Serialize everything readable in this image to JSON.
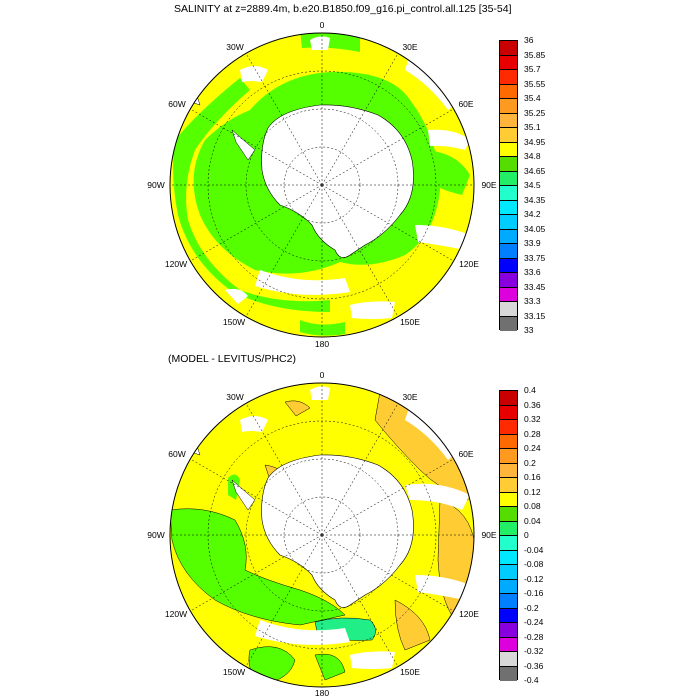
{
  "panels": [
    {
      "title": "SALINITY at z=2889.4m, b.e20.B1850.f09_g16.pi_control.all.125 [35-54]",
      "lon_labels": [
        "0",
        "30E",
        "60E",
        "90E",
        "120E",
        "150E",
        "180",
        "150W",
        "120W",
        "90W",
        "60W",
        "30W"
      ],
      "colorbar_labels": [
        "36",
        "35.85",
        "35.7",
        "35.55",
        "35.4",
        "35.25",
        "35.1",
        "34.95",
        "34.8",
        "34.65",
        "34.5",
        "34.35",
        "34.2",
        "34.05",
        "33.9",
        "33.75",
        "33.6",
        "33.45",
        "33.3",
        "33.15",
        "33"
      ],
      "colorbar_colors": [
        "#c80000",
        "#e80000",
        "#ff2a00",
        "#ff6a00",
        "#ff9a20",
        "#ffb43c",
        "#ffcc33",
        "#ffff00",
        "#55dd00",
        "#22ee66",
        "#22ffcc",
        "#00e8ff",
        "#00ccff",
        "#00aaff",
        "#0080ff",
        "#0000ff",
        "#8800dd",
        "#dd00dd",
        "#d8d8d8",
        "#707070"
      ]
    },
    {
      "title": "(MODEL - LEVITUS/PHC2)",
      "lon_labels": [
        "0",
        "30E",
        "60E",
        "90E",
        "120E",
        "150E",
        "180",
        "150W",
        "120W",
        "90W",
        "60W",
        "30W"
      ],
      "colorbar_labels": [
        "0.4",
        "0.36",
        "0.32",
        "0.28",
        "0.24",
        "0.2",
        "0.16",
        "0.12",
        "0.08",
        "0.04",
        "0",
        "-0.04",
        "-0.08",
        "-0.12",
        "-0.16",
        "-0.2",
        "-0.24",
        "-0.28",
        "-0.32",
        "-0.36",
        "-0.4"
      ],
      "colorbar_colors": [
        "#c80000",
        "#e80000",
        "#ff2a00",
        "#ff6a00",
        "#ff9a20",
        "#ffb43c",
        "#ffcc33",
        "#ffff00",
        "#55dd00",
        "#22ee66",
        "#22ffcc",
        "#00e8ff",
        "#00ccff",
        "#00aaff",
        "#0080ff",
        "#0000ff",
        "#8800dd",
        "#dd00dd",
        "#d8d8d8",
        "#707070"
      ]
    }
  ],
  "colors": {
    "yellow": "#ffff00",
    "green": "#55ff00",
    "light_orange": "#ffcc33",
    "teal": "#22ee88",
    "land": "#ffffff",
    "outline": "#000000"
  }
}
